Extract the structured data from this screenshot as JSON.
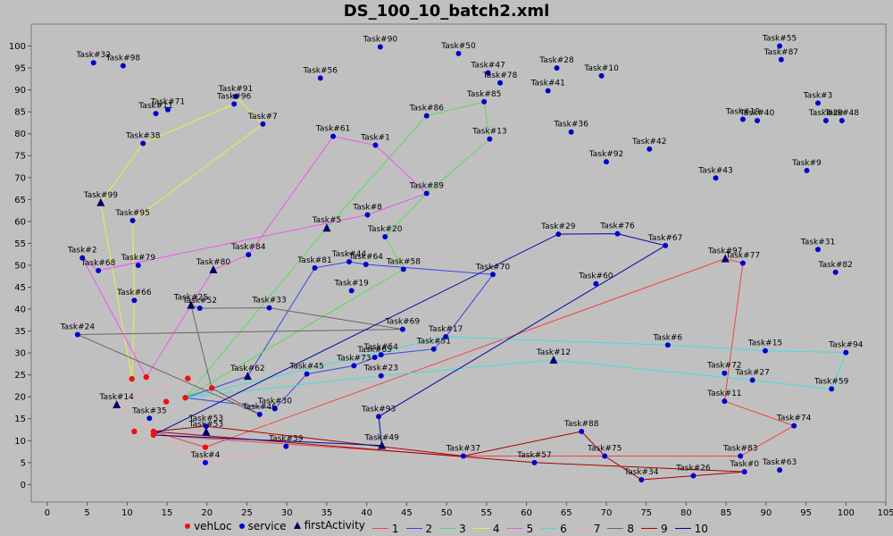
{
  "chart_data": {
    "type": "scatter",
    "title": "DS_100_10_batch2.xml",
    "xlim": [
      -2,
      105
    ],
    "ylim": [
      -4,
      105
    ],
    "x_ticks": [
      0,
      5,
      10,
      15,
      20,
      25,
      30,
      35,
      40,
      45,
      50,
      55,
      60,
      65,
      70,
      75,
      80,
      85,
      90,
      95,
      100,
      105
    ],
    "y_ticks": [
      0,
      5,
      10,
      15,
      20,
      25,
      30,
      35,
      40,
      45,
      50,
      55,
      60,
      65,
      70,
      75,
      80,
      85,
      90,
      95,
      100
    ],
    "grid": false,
    "legend_placement": "bottom",
    "legend": [
      {
        "label": "vehLoc",
        "kind": "dot",
        "color": "#ee1111"
      },
      {
        "label": "service",
        "kind": "dot",
        "color": "#0000cc"
      },
      {
        "label": "firstActivity",
        "kind": "triangle",
        "color": "#000060"
      },
      {
        "label": "1",
        "kind": "line",
        "color": "#ee4444"
      },
      {
        "label": "2",
        "kind": "line",
        "color": "#3344ee"
      },
      {
        "label": "3",
        "kind": "line",
        "color": "#55dd55"
      },
      {
        "label": "4",
        "kind": "line",
        "color": "#eeee44"
      },
      {
        "label": "5",
        "kind": "line",
        "color": "#ee55ee"
      },
      {
        "label": "6",
        "kind": "line",
        "color": "#44dddd"
      },
      {
        "label": "7",
        "kind": "line",
        "color": "#ffaaaa"
      },
      {
        "label": "8",
        "kind": "line",
        "color": "#666666"
      },
      {
        "label": "9",
        "kind": "line",
        "color": "#aa0000"
      },
      {
        "label": "10",
        "kind": "line",
        "color": "#0000aa"
      }
    ],
    "service_points": [
      {
        "label": "Task#32",
        "x": 5.8,
        "y": 96.2
      },
      {
        "label": "Task#98",
        "x": 9.5,
        "y": 95.5
      },
      {
        "label": "Task#90",
        "x": 41.7,
        "y": 99.8
      },
      {
        "label": "Task#50",
        "x": 51.5,
        "y": 98.3
      },
      {
        "label": "Task#55",
        "x": 91.7,
        "y": 100.0
      },
      {
        "label": "Task#87",
        "x": 91.9,
        "y": 96.9
      },
      {
        "label": "Task#56",
        "x": 34.2,
        "y": 92.7
      },
      {
        "label": "Task#47",
        "x": 55.2,
        "y": 93.9
      },
      {
        "label": "Task#78",
        "x": 56.7,
        "y": 91.6
      },
      {
        "label": "Task#28",
        "x": 63.8,
        "y": 95.0
      },
      {
        "label": "Task#10",
        "x": 69.4,
        "y": 93.2
      },
      {
        "label": "Task#41",
        "x": 62.7,
        "y": 89.8
      },
      {
        "label": "Task#91",
        "x": 23.6,
        "y": 88.5
      },
      {
        "label": "Task#96",
        "x": 23.4,
        "y": 86.8
      },
      {
        "label": "Task#71",
        "x": 15.1,
        "y": 85.5
      },
      {
        "label": "Task#11",
        "x": 13.6,
        "y": 84.6
      },
      {
        "label": "Task#85",
        "x": 54.7,
        "y": 87.3
      },
      {
        "label": "Task#86",
        "x": 47.5,
        "y": 84.1
      },
      {
        "label": "Task#3",
        "x": 96.5,
        "y": 87.0
      },
      {
        "label": "Task#19",
        "x": 87.1,
        "y": 83.3
      },
      {
        "label": "Task#40",
        "x": 88.9,
        "y": 83.0
      },
      {
        "label": "Task#29",
        "x": 97.5,
        "y": 83.0
      },
      {
        "label": "Task#48",
        "x": 99.5,
        "y": 83.0
      },
      {
        "label": "Task#7",
        "x": 27.0,
        "y": 82.2
      },
      {
        "label": "Task#36",
        "x": 65.6,
        "y": 80.4
      },
      {
        "label": "Task#38",
        "x": 12.0,
        "y": 77.8
      },
      {
        "label": "Task#61",
        "x": 35.8,
        "y": 79.4
      },
      {
        "label": "Task#1",
        "x": 41.1,
        "y": 77.4
      },
      {
        "label": "Task#13",
        "x": 55.4,
        "y": 78.8
      },
      {
        "label": "Task#42",
        "x": 75.4,
        "y": 76.5
      },
      {
        "label": "Task#92",
        "x": 70.0,
        "y": 73.6
      },
      {
        "label": "Task#9",
        "x": 95.1,
        "y": 71.6
      },
      {
        "label": "Task#43",
        "x": 83.7,
        "y": 69.9
      },
      {
        "label": "Task#89",
        "x": 47.5,
        "y": 66.4
      },
      {
        "label": "Task#8",
        "x": 40.1,
        "y": 61.5
      },
      {
        "label": "Task#95",
        "x": 10.7,
        "y": 60.2
      },
      {
        "label": "Task#20",
        "x": 42.3,
        "y": 56.5
      },
      {
        "label": "Task#29",
        "x": 64.0,
        "y": 57.1
      },
      {
        "label": "Task#76",
        "x": 71.4,
        "y": 57.2
      },
      {
        "label": "Task#67",
        "x": 77.4,
        "y": 54.5
      },
      {
        "label": "Task#31",
        "x": 96.5,
        "y": 53.6
      },
      {
        "label": "Task#84",
        "x": 25.2,
        "y": 52.4
      },
      {
        "label": "Task#2",
        "x": 4.4,
        "y": 51.7
      },
      {
        "label": "Task#68",
        "x": 6.4,
        "y": 48.8
      },
      {
        "label": "Task#79",
        "x": 11.4,
        "y": 50.0
      },
      {
        "label": "Task#81",
        "x": 33.5,
        "y": 49.4
      },
      {
        "label": "Task#44",
        "x": 37.8,
        "y": 50.8
      },
      {
        "label": "Task#64",
        "x": 39.9,
        "y": 50.2
      },
      {
        "label": "Task#58",
        "x": 44.6,
        "y": 49.1
      },
      {
        "label": "Task#82",
        "x": 98.7,
        "y": 48.4
      },
      {
        "label": "Task#77",
        "x": 87.1,
        "y": 50.5
      },
      {
        "label": "Task#70",
        "x": 55.8,
        "y": 47.9
      },
      {
        "label": "Task#60",
        "x": 68.7,
        "y": 45.8
      },
      {
        "label": "Task#19",
        "x": 38.1,
        "y": 44.2
      },
      {
        "label": "Task#66",
        "x": 10.9,
        "y": 42.0
      },
      {
        "label": "Task#52",
        "x": 19.1,
        "y": 40.2
      },
      {
        "label": "Task#33",
        "x": 27.8,
        "y": 40.3
      },
      {
        "label": "Task#69",
        "x": 44.5,
        "y": 35.4
      },
      {
        "label": "Task#24",
        "x": 3.8,
        "y": 34.2
      },
      {
        "label": "Task#17",
        "x": 49.9,
        "y": 33.7
      },
      {
        "label": "Task#6",
        "x": 77.7,
        "y": 31.8
      },
      {
        "label": "Task#15",
        "x": 89.9,
        "y": 30.5
      },
      {
        "label": "Task#94",
        "x": 100.0,
        "y": 30.1
      },
      {
        "label": "Task#51",
        "x": 48.4,
        "y": 30.9
      },
      {
        "label": "Task#54",
        "x": 41.8,
        "y": 29.6
      },
      {
        "label": "Task#65",
        "x": 41.0,
        "y": 29.0
      },
      {
        "label": "Task#73",
        "x": 38.4,
        "y": 27.1
      },
      {
        "label": "Task#23",
        "x": 41.8,
        "y": 24.8
      },
      {
        "label": "Task#45",
        "x": 32.5,
        "y": 25.2
      },
      {
        "label": "Task#72",
        "x": 84.8,
        "y": 25.4
      },
      {
        "label": "Task#27",
        "x": 88.3,
        "y": 23.8
      },
      {
        "label": "Task#59",
        "x": 98.2,
        "y": 21.8
      },
      {
        "label": "Task#11",
        "x": 84.8,
        "y": 19.0
      },
      {
        "label": "Task#30",
        "x": 28.5,
        "y": 17.3
      },
      {
        "label": "Task#46",
        "x": 26.6,
        "y": 16.0
      },
      {
        "label": "Task#93",
        "x": 41.5,
        "y": 15.5
      },
      {
        "label": "Task#35",
        "x": 12.8,
        "y": 15.1
      },
      {
        "label": "Task#74",
        "x": 93.5,
        "y": 13.4
      },
      {
        "label": "Task#88",
        "x": 66.9,
        "y": 12.1
      },
      {
        "label": "Task#39",
        "x": 29.9,
        "y": 8.7
      },
      {
        "label": "Task#37",
        "x": 52.1,
        "y": 6.5
      },
      {
        "label": "Task#75",
        "x": 69.8,
        "y": 6.5
      },
      {
        "label": "Task#83",
        "x": 86.8,
        "y": 6.5
      },
      {
        "label": "Task#57",
        "x": 61.0,
        "y": 5.0
      },
      {
        "label": "Task#4",
        "x": 19.8,
        "y": 5.0
      },
      {
        "label": "Task#63",
        "x": 91.7,
        "y": 3.3
      },
      {
        "label": "Task#0",
        "x": 87.3,
        "y": 2.9
      },
      {
        "label": "Task#26",
        "x": 80.9,
        "y": 2.0
      },
      {
        "label": "Task#34",
        "x": 74.4,
        "y": 1.1
      },
      {
        "label": "Task#53",
        "x": 19.9,
        "y": 13.3
      }
    ],
    "first_activity_points": [
      {
        "label": "Task#99",
        "x": 6.7,
        "y": 64.3
      },
      {
        "label": "Task#5",
        "x": 35.0,
        "y": 58.5
      },
      {
        "label": "Task#80",
        "x": 20.8,
        "y": 49.0
      },
      {
        "label": "Task#25",
        "x": 18.0,
        "y": 40.9
      },
      {
        "label": "Task#97",
        "x": 84.9,
        "y": 51.5
      },
      {
        "label": "Task#12",
        "x": 63.4,
        "y": 28.4
      },
      {
        "label": "Task#62",
        "x": 25.1,
        "y": 24.7
      },
      {
        "label": "Task#14",
        "x": 8.7,
        "y": 18.2
      },
      {
        "label": "Task#53",
        "x": 19.9,
        "y": 12.0
      },
      {
        "label": "Task#49",
        "x": 41.9,
        "y": 8.9
      }
    ],
    "veh_loc_points": [
      {
        "x": 10.6,
        "y": 24.1
      },
      {
        "x": 12.4,
        "y": 24.5
      },
      {
        "x": 17.6,
        "y": 24.2
      },
      {
        "x": 20.6,
        "y": 22.0
      },
      {
        "x": 14.9,
        "y": 18.9
      },
      {
        "x": 17.3,
        "y": 19.8
      },
      {
        "x": 10.9,
        "y": 12.1
      },
      {
        "x": 13.3,
        "y": 11.3
      },
      {
        "x": 13.3,
        "y": 12.1
      },
      {
        "x": 19.8,
        "y": 8.5
      }
    ],
    "series": [
      {
        "name": "1",
        "color": "#ee4444",
        "points": [
          [
            13.3,
            11.3
          ],
          [
            52.1,
            6.5
          ],
          [
            86.8,
            6.5
          ],
          [
            93.5,
            13.4
          ],
          [
            84.8,
            19.0
          ],
          [
            87.1,
            50.5
          ],
          [
            84.9,
            51.5
          ],
          [
            19.8,
            8.5
          ],
          [
            13.3,
            12.1
          ]
        ]
      },
      {
        "name": "2",
        "color": "#3344ee",
        "points": [
          [
            17.3,
            19.8
          ],
          [
            25.1,
            24.7
          ],
          [
            33.5,
            49.4
          ],
          [
            37.8,
            50.8
          ],
          [
            39.9,
            50.2
          ],
          [
            55.8,
            47.9
          ],
          [
            49.9,
            33.7
          ],
          [
            48.4,
            30.9
          ],
          [
            41.8,
            29.6
          ],
          [
            41.0,
            29.0
          ],
          [
            38.4,
            27.1
          ],
          [
            32.5,
            25.2
          ],
          [
            28.5,
            17.3
          ],
          [
            17.3,
            19.8
          ]
        ]
      },
      {
        "name": "3",
        "color": "#55dd55",
        "points": [
          [
            17.3,
            19.8
          ],
          [
            35.0,
            58.5
          ],
          [
            47.5,
            84.1
          ],
          [
            54.7,
            87.3
          ],
          [
            55.4,
            78.8
          ],
          [
            47.5,
            66.4
          ],
          [
            42.3,
            56.5
          ],
          [
            44.6,
            49.1
          ],
          [
            17.3,
            19.8
          ]
        ]
      },
      {
        "name": "4",
        "color": "#eeee44",
        "points": [
          [
            10.6,
            24.1
          ],
          [
            6.7,
            64.3
          ],
          [
            12.0,
            77.8
          ],
          [
            23.4,
            86.8
          ],
          [
            23.6,
            88.5
          ],
          [
            27.0,
            82.2
          ],
          [
            10.7,
            60.2
          ],
          [
            10.9,
            42.0
          ],
          [
            10.6,
            24.1
          ]
        ]
      },
      {
        "name": "5",
        "color": "#ee55ee",
        "points": [
          [
            12.4,
            24.5
          ],
          [
            20.8,
            49.0
          ],
          [
            25.2,
            52.4
          ],
          [
            35.8,
            79.4
          ],
          [
            41.1,
            77.4
          ],
          [
            47.5,
            66.4
          ],
          [
            40.1,
            61.5
          ],
          [
            6.4,
            48.8
          ],
          [
            4.4,
            51.7
          ],
          [
            12.4,
            24.5
          ]
        ]
      },
      {
        "name": "6",
        "color": "#44dddd",
        "points": [
          [
            17.3,
            19.8
          ],
          [
            49.9,
            33.7
          ],
          [
            77.7,
            31.8
          ],
          [
            89.9,
            30.5
          ],
          [
            100.0,
            30.1
          ],
          [
            98.2,
            21.8
          ],
          [
            88.3,
            23.8
          ],
          [
            63.4,
            28.4
          ],
          [
            41.8,
            24.8
          ],
          [
            17.3,
            19.8
          ]
        ]
      },
      {
        "name": "7",
        "color": "#ffaaaa",
        "points": [
          [
            13.3,
            12.1
          ],
          [
            19.8,
            5.0
          ],
          [
            29.9,
            8.7
          ],
          [
            26.6,
            16.0
          ],
          [
            17.6,
            24.2
          ],
          [
            8.7,
            18.2
          ],
          [
            13.3,
            12.1
          ]
        ]
      },
      {
        "name": "8",
        "color": "#666666",
        "points": [
          [
            20.6,
            22.0
          ],
          [
            18.0,
            40.9
          ],
          [
            19.1,
            40.2
          ],
          [
            27.8,
            40.3
          ],
          [
            44.5,
            35.4
          ],
          [
            3.8,
            34.2
          ],
          [
            26.6,
            16.0
          ],
          [
            20.6,
            22.0
          ]
        ]
      },
      {
        "name": "9",
        "color": "#aa0000",
        "points": [
          [
            13.3,
            12.1
          ],
          [
            19.9,
            13.3
          ],
          [
            52.1,
            6.5
          ],
          [
            66.9,
            12.1
          ],
          [
            69.8,
            6.5
          ],
          [
            74.4,
            1.1
          ],
          [
            80.9,
            2.0
          ],
          [
            87.3,
            2.9
          ],
          [
            61.0,
            5.0
          ],
          [
            13.3,
            12.1
          ]
        ]
      },
      {
        "name": "10",
        "color": "#0000aa",
        "points": [
          [
            13.3,
            11.3
          ],
          [
            64.0,
            57.1
          ],
          [
            71.4,
            57.2
          ],
          [
            77.4,
            54.5
          ],
          [
            41.5,
            15.5
          ],
          [
            41.9,
            8.9
          ],
          [
            13.3,
            11.3
          ]
        ]
      }
    ]
  }
}
